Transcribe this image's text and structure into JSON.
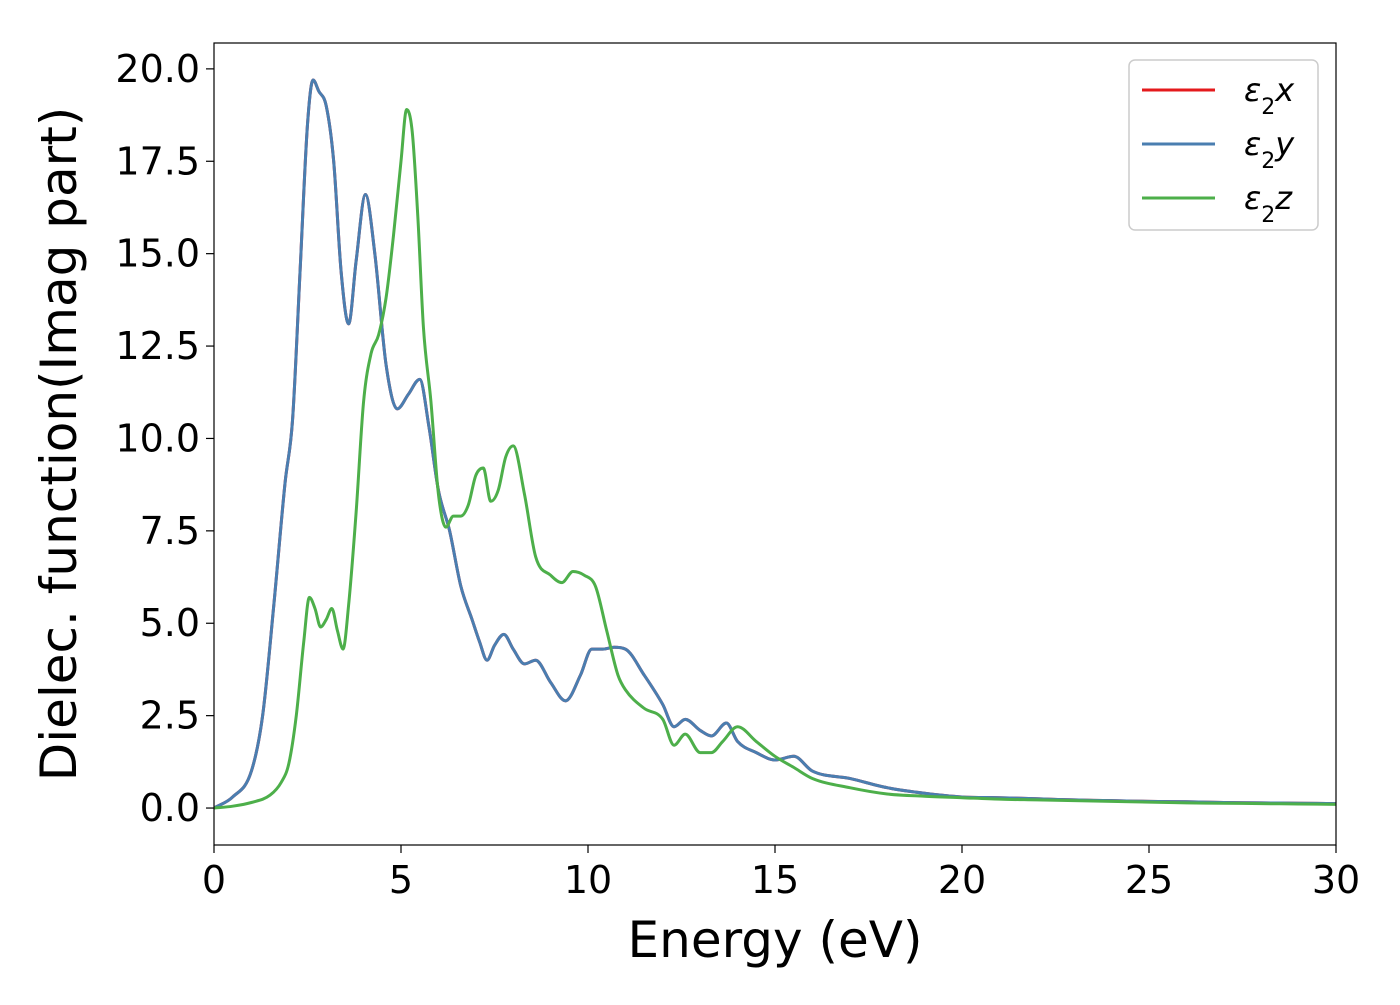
{
  "chart_data": {
    "type": "line",
    "title": "",
    "xlabel": "Energy (eV)",
    "ylabel": "Dielec. function(Imag part)",
    "xlim": [
      0,
      30
    ],
    "ylim": [
      -1.0,
      20.7
    ],
    "xticks": [
      0,
      5,
      10,
      15,
      20,
      25,
      30
    ],
    "xtick_labels": [
      "0",
      "5",
      "10",
      "15",
      "20",
      "25",
      "30"
    ],
    "yticks": [
      0,
      2.5,
      5,
      7.5,
      10,
      12.5,
      15,
      17.5,
      20
    ],
    "ytick_labels": [
      "0.0",
      "2.5",
      "5.0",
      "7.5",
      "10.0",
      "12.5",
      "15.0",
      "17.5",
      "20.0"
    ],
    "grid": false,
    "legend": "top-right",
    "series": [
      {
        "name": "ε₂x",
        "name_main": "ε",
        "name_sub": "2",
        "name_tail": "x",
        "color": "#e41a1c",
        "x": [
          0,
          0.5,
          1.0,
          1.3,
          1.6,
          1.9,
          2.1,
          2.3,
          2.5,
          2.65,
          2.8,
          3.0,
          3.2,
          3.4,
          3.6,
          3.8,
          4.05,
          4.3,
          4.6,
          4.9,
          5.2,
          5.5,
          5.75,
          6.0,
          6.3,
          6.6,
          6.9,
          7.1,
          7.3,
          7.5,
          7.75,
          8.0,
          8.3,
          8.6,
          9.0,
          9.4,
          9.8,
          10.1,
          10.4,
          10.7,
          11.0,
          11.5,
          12.0,
          12.3,
          12.6,
          13.0,
          13.3,
          13.7,
          14.0,
          14.5,
          15.0,
          15.5,
          16.0,
          17.0,
          18.0,
          19.0,
          20.0,
          21.0,
          22.0,
          23.0,
          24.0,
          25.0,
          26.0,
          27.0,
          28.0,
          29.0,
          30.0
        ],
        "y": [
          0.0,
          0.3,
          1.0,
          2.5,
          5.5,
          8.8,
          10.5,
          14.5,
          18.5,
          19.7,
          19.4,
          19.0,
          17.5,
          14.5,
          13.1,
          14.8,
          16.6,
          15.0,
          12.0,
          10.8,
          11.2,
          11.6,
          10.3,
          8.6,
          7.5,
          6.0,
          5.1,
          4.5,
          4.0,
          4.4,
          4.7,
          4.3,
          3.9,
          4.0,
          3.4,
          2.9,
          3.6,
          4.3,
          4.3,
          4.35,
          4.3,
          3.6,
          2.8,
          2.2,
          2.4,
          2.1,
          1.95,
          2.3,
          1.8,
          1.5,
          1.3,
          1.4,
          1.0,
          0.8,
          0.55,
          0.4,
          0.3,
          0.28,
          0.25,
          0.22,
          0.2,
          0.18,
          0.17,
          0.15,
          0.14,
          0.13,
          0.12
        ]
      },
      {
        "name": "ε₂y",
        "name_main": "ε",
        "name_sub": "2",
        "name_tail": "y",
        "color": "#4a7eb0",
        "x": [
          0,
          0.5,
          1.0,
          1.3,
          1.6,
          1.9,
          2.1,
          2.3,
          2.5,
          2.65,
          2.8,
          3.0,
          3.2,
          3.4,
          3.6,
          3.8,
          4.05,
          4.3,
          4.6,
          4.9,
          5.2,
          5.5,
          5.75,
          6.0,
          6.3,
          6.6,
          6.9,
          7.1,
          7.3,
          7.5,
          7.75,
          8.0,
          8.3,
          8.6,
          9.0,
          9.4,
          9.8,
          10.1,
          10.4,
          10.7,
          11.0,
          11.5,
          12.0,
          12.3,
          12.6,
          13.0,
          13.3,
          13.7,
          14.0,
          14.5,
          15.0,
          15.5,
          16.0,
          17.0,
          18.0,
          19.0,
          20.0,
          21.0,
          22.0,
          23.0,
          24.0,
          25.0,
          26.0,
          27.0,
          28.0,
          29.0,
          30.0
        ],
        "y": [
          0.0,
          0.3,
          1.0,
          2.5,
          5.5,
          8.8,
          10.5,
          14.5,
          18.5,
          19.7,
          19.4,
          19.0,
          17.5,
          14.5,
          13.1,
          14.8,
          16.6,
          15.0,
          12.0,
          10.8,
          11.2,
          11.6,
          10.3,
          8.6,
          7.5,
          6.0,
          5.1,
          4.5,
          4.0,
          4.4,
          4.7,
          4.3,
          3.9,
          4.0,
          3.4,
          2.9,
          3.6,
          4.3,
          4.3,
          4.35,
          4.3,
          3.6,
          2.8,
          2.2,
          2.4,
          2.1,
          1.95,
          2.3,
          1.8,
          1.5,
          1.3,
          1.4,
          1.0,
          0.8,
          0.55,
          0.4,
          0.3,
          0.28,
          0.25,
          0.22,
          0.2,
          0.18,
          0.17,
          0.15,
          0.14,
          0.13,
          0.12
        ]
      },
      {
        "name": "ε₂z",
        "name_main": "ε",
        "name_sub": "2",
        "name_tail": "z",
        "color": "#4daf4a",
        "x": [
          0,
          0.5,
          1.0,
          1.5,
          1.8,
          2.0,
          2.2,
          2.4,
          2.55,
          2.7,
          2.85,
          3.0,
          3.15,
          3.3,
          3.45,
          3.6,
          3.8,
          4.0,
          4.2,
          4.4,
          4.6,
          4.8,
          5.0,
          5.15,
          5.3,
          5.45,
          5.6,
          5.8,
          6.0,
          6.2,
          6.4,
          6.6,
          6.8,
          7.0,
          7.2,
          7.4,
          7.6,
          7.8,
          8.0,
          8.3,
          8.6,
          9.0,
          9.3,
          9.6,
          9.9,
          10.2,
          10.5,
          10.8,
          11.0,
          11.5,
          12.0,
          12.3,
          12.6,
          13.0,
          13.3,
          13.6,
          14.0,
          14.5,
          15.0,
          15.5,
          16.0,
          17.0,
          18.0,
          19.0,
          20.0,
          21.0,
          22.0,
          23.0,
          24.0,
          25.0,
          26.0,
          27.0,
          28.0,
          29.0,
          30.0
        ],
        "y": [
          0.0,
          0.05,
          0.15,
          0.35,
          0.7,
          1.2,
          2.5,
          4.5,
          5.7,
          5.4,
          4.9,
          5.1,
          5.4,
          4.8,
          4.3,
          5.5,
          8.0,
          11.0,
          12.3,
          12.8,
          13.8,
          15.5,
          17.5,
          18.9,
          18.3,
          16.0,
          13.0,
          11.0,
          8.5,
          7.6,
          7.9,
          7.9,
          8.2,
          9.0,
          9.2,
          8.3,
          8.6,
          9.5,
          9.8,
          8.5,
          6.8,
          6.3,
          6.1,
          6.4,
          6.3,
          6.0,
          4.8,
          3.6,
          3.2,
          2.7,
          2.4,
          1.7,
          2.0,
          1.5,
          1.5,
          1.8,
          2.2,
          1.8,
          1.4,
          1.1,
          0.8,
          0.55,
          0.38,
          0.32,
          0.28,
          0.24,
          0.22,
          0.2,
          0.18,
          0.16,
          0.14,
          0.13,
          0.12,
          0.11,
          0.1
        ]
      }
    ]
  }
}
